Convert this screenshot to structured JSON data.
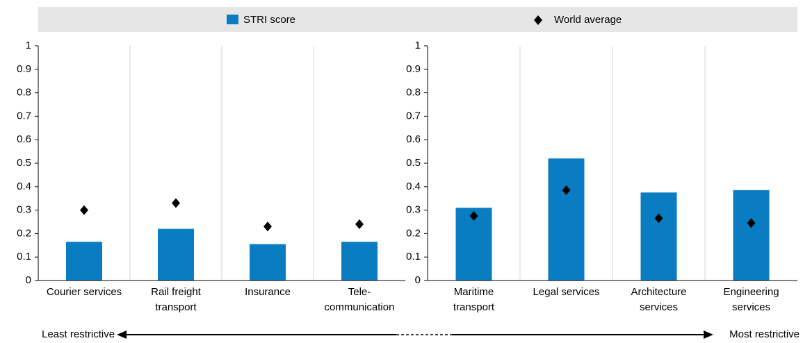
{
  "chart_data": [
    {
      "type": "bar",
      "categories": [
        "Courier services",
        "Rail freight\ntransport",
        "Insurance",
        "Tele-\ncommunication"
      ],
      "series": [
        {
          "name": "STRI score",
          "color": "#0a7dc2",
          "values": [
            0.165,
            0.22,
            0.155,
            0.165
          ]
        },
        {
          "name": "World average",
          "color": "#000000",
          "marker": "diamond",
          "values": [
            0.3,
            0.33,
            0.23,
            0.24
          ]
        }
      ],
      "ylim": [
        0,
        1
      ],
      "yticks": [
        0,
        0.1,
        0.2,
        0.3,
        0.4,
        0.5,
        0.6,
        0.7,
        0.8,
        0.9,
        1
      ]
    },
    {
      "type": "bar",
      "categories": [
        "Maritime\ntransport",
        "Legal services",
        "Architecture\nservices",
        "Engineering\nservices"
      ],
      "series": [
        {
          "color": "#0a7dc2",
          "values": [
            0.31,
            0.52,
            0.375,
            0.385
          ]
        },
        {
          "color": "#000000",
          "marker": "diamond",
          "values": [
            0.275,
            0.385,
            0.265,
            0.245
          ]
        }
      ],
      "ylim": [
        0,
        1
      ],
      "yticks": [
        0,
        0.1,
        0.2,
        0.3,
        0.4,
        0.5,
        0.6,
        0.7,
        0.8,
        0.9,
        1
      ]
    }
  ],
  "scale_note": {
    "left": "Least restrictive",
    "right": "Most restrictive"
  }
}
